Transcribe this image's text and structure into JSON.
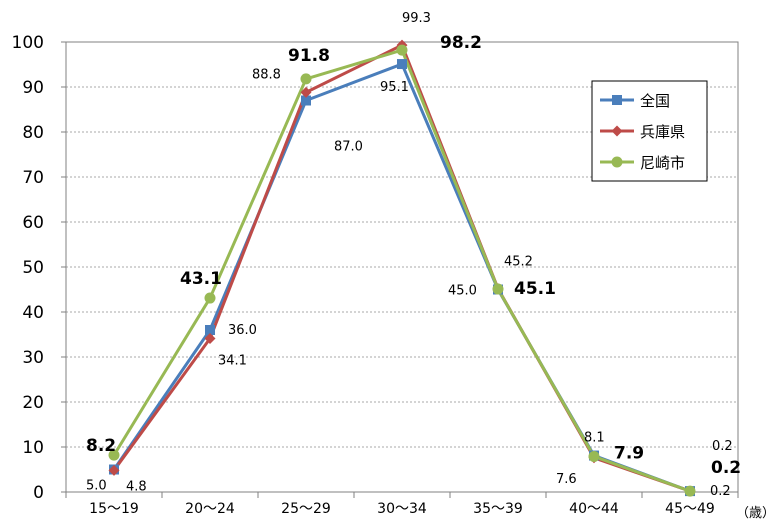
{
  "chart_data": {
    "type": "line",
    "categories": [
      "15〜19",
      "20〜24",
      "25〜29",
      "30〜34",
      "35〜39",
      "40〜44",
      "45〜49"
    ],
    "x_unit_label": "（歳）",
    "ylim": [
      0,
      100
    ],
    "y_ticks": [
      "0",
      "10",
      "20",
      "30",
      "40",
      "50",
      "60",
      "70",
      "80",
      "90",
      "100"
    ],
    "grid": "horizontal dashed",
    "legend_position": "top-right",
    "series": [
      {
        "name": "全国",
        "color": "#4a7ebb",
        "marker": "square",
        "values": [
          5.0,
          36.0,
          87.0,
          95.1,
          45.0,
          8.1,
          0.2
        ]
      },
      {
        "name": "兵庫県",
        "color": "#be4b48",
        "marker": "diamond",
        "values": [
          4.8,
          34.1,
          88.8,
          99.3,
          45.2,
          7.6,
          0.2
        ]
      },
      {
        "name": "尼崎市",
        "color": "#98b954",
        "marker": "circle",
        "values": [
          8.2,
          43.1,
          91.8,
          98.2,
          45.1,
          7.9,
          0.2
        ]
      }
    ],
    "data_labels": [
      {
        "text": "5.0",
        "series": 0,
        "index": 0,
        "bold": false
      },
      {
        "text": "4.8",
        "series": 1,
        "index": 0,
        "bold": false
      },
      {
        "text": "8.2",
        "series": 2,
        "index": 0,
        "bold": true
      },
      {
        "text": "36.0",
        "series": 0,
        "index": 1,
        "bold": false
      },
      {
        "text": "34.1",
        "series": 1,
        "index": 1,
        "bold": false
      },
      {
        "text": "43.1",
        "series": 2,
        "index": 1,
        "bold": true
      },
      {
        "text": "87.0",
        "series": 0,
        "index": 2,
        "bold": false
      },
      {
        "text": "88.8",
        "series": 1,
        "index": 2,
        "bold": false
      },
      {
        "text": "91.8",
        "series": 2,
        "index": 2,
        "bold": true
      },
      {
        "text": "95.1",
        "series": 0,
        "index": 3,
        "bold": false
      },
      {
        "text": "99.3",
        "series": 1,
        "index": 3,
        "bold": false
      },
      {
        "text": "98.2",
        "series": 2,
        "index": 3,
        "bold": true
      },
      {
        "text": "45.0",
        "series": 0,
        "index": 4,
        "bold": false
      },
      {
        "text": "45.2",
        "series": 1,
        "index": 4,
        "bold": false
      },
      {
        "text": "45.1",
        "series": 2,
        "index": 4,
        "bold": true
      },
      {
        "text": "8.1",
        "series": 0,
        "index": 5,
        "bold": false
      },
      {
        "text": "7.6",
        "series": 1,
        "index": 5,
        "bold": false
      },
      {
        "text": "7.9",
        "series": 2,
        "index": 5,
        "bold": true
      },
      {
        "text": "0.2",
        "series": 0,
        "index": 6,
        "bold": false
      },
      {
        "text": "0.2",
        "series": 1,
        "index": 6,
        "bold": false
      },
      {
        "text": "0.2",
        "series": 2,
        "index": 6,
        "bold": true
      }
    ]
  }
}
